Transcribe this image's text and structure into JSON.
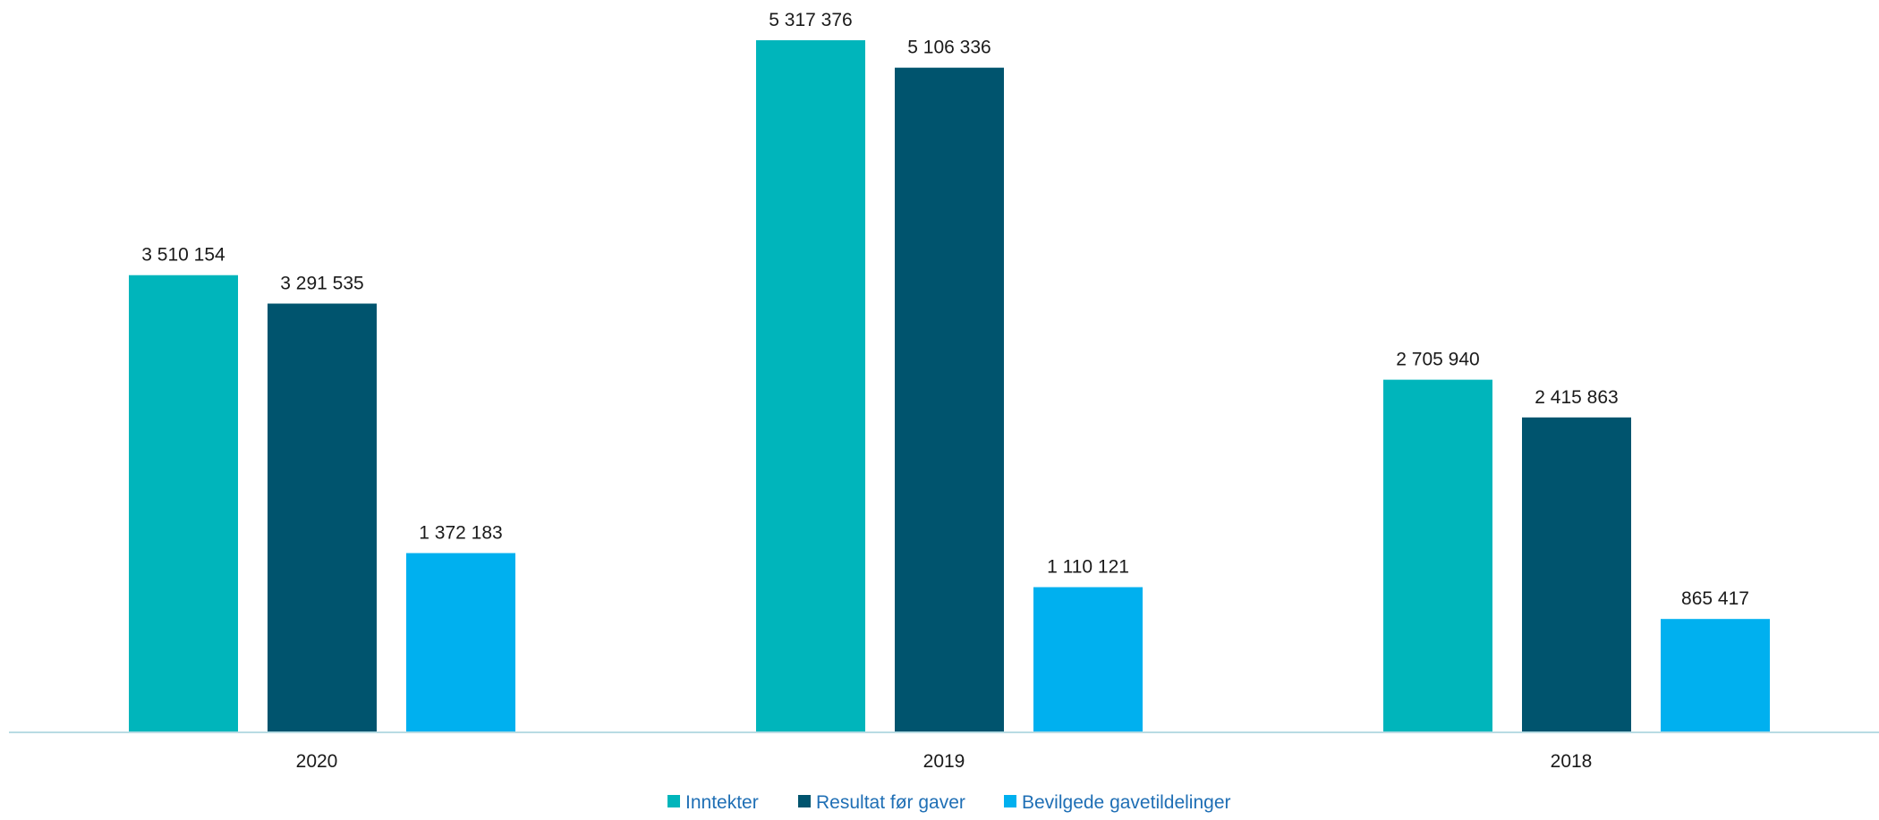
{
  "chart_data": {
    "type": "bar",
    "categories": [
      "2020",
      "2019",
      "2018"
    ],
    "series": [
      {
        "name": "Inntekter",
        "color": "#00b5bb",
        "values": [
          3510154,
          5317376,
          2705940
        ],
        "labels": [
          "3 510 154",
          "5 317 376",
          "2 705 940"
        ]
      },
      {
        "name": "Resultat før gaver",
        "color": "#00546e",
        "values": [
          3291535,
          5106336,
          2415863
        ],
        "labels": [
          "3 291 535",
          "5 106 336",
          "2 415 863"
        ]
      },
      {
        "name": "Bevilgede gavetildelinger",
        "color": "#00b0ef",
        "values": [
          1372183,
          1110121,
          865417
        ],
        "labels": [
          "1 372 183",
          "1 110 121",
          "865 417"
        ]
      }
    ],
    "title": "",
    "xlabel": "",
    "ylabel": "",
    "ylim": [
      0,
      5317376
    ],
    "grid": false,
    "legend": "bottom-center",
    "axis_color": "#b8dbe3",
    "text_color": "#1a1a1a",
    "legend_text_color": "#1f6fb5"
  }
}
